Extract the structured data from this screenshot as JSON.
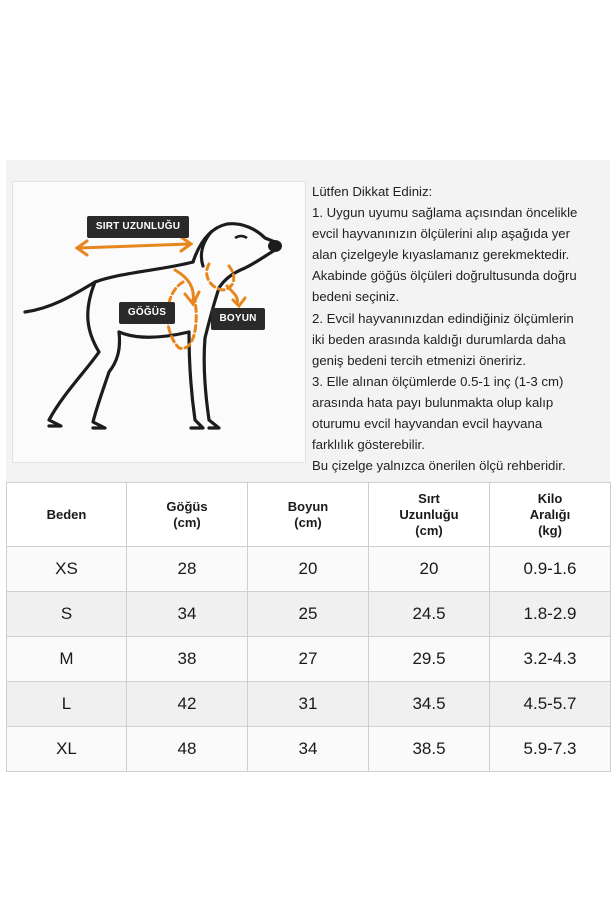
{
  "diagram": {
    "labels": {
      "back_length": "SIRT UZUNLUĞU",
      "chest": "GÖĞÜS",
      "neck": "BOYUN"
    },
    "accent_color": "#e8861e"
  },
  "notes": {
    "lines": [
      "Lütfen Dikkat Ediniz:",
      "1. Uygun uyumu sağlama açısından öncelikle",
      "evcil hayvanınızın ölçülerini alıp aşağıda yer",
      "alan çizelgeyle kıyaslamanız gerekmektedir.",
      "Akabinde göğüs ölçüleri doğrultusunda doğru",
      "bedeni seçiniz.",
      "2. Evcil hayvanınızdan edindiğiniz ölçümlerin",
      "iki beden arasında kaldığı durumlarda daha",
      "geniş bedeni tercih etmenizi öneririz.",
      "3. Elle alınan ölçümlerde 0.5-1 inç (1-3 cm)",
      "arasında hata payı bulunmakta olup kalıp",
      "oturumu evcil hayvandan evcil hayvana",
      "farklılık gösterebilir.",
      "Bu çizelge yalnızca önerilen ölçü rehberidir."
    ]
  },
  "table": {
    "headers": [
      [
        "Beden"
      ],
      [
        "Göğüs",
        "(cm)"
      ],
      [
        "Boyun",
        "(cm)"
      ],
      [
        "Sırt",
        "Uzunluğu",
        "(cm)"
      ],
      [
        "Kilo",
        "Aralığı",
        "(kg)"
      ]
    ],
    "rows": [
      [
        "XS",
        "28",
        "20",
        "20",
        "0.9-1.6"
      ],
      [
        "S",
        "34",
        "25",
        "24.5",
        "1.8-2.9"
      ],
      [
        "M",
        "38",
        "27",
        "29.5",
        "3.2-4.3"
      ],
      [
        "L",
        "42",
        "31",
        "34.5",
        "4.5-5.7"
      ],
      [
        "XL",
        "48",
        "34",
        "38.5",
        "5.9-7.3"
      ]
    ]
  }
}
